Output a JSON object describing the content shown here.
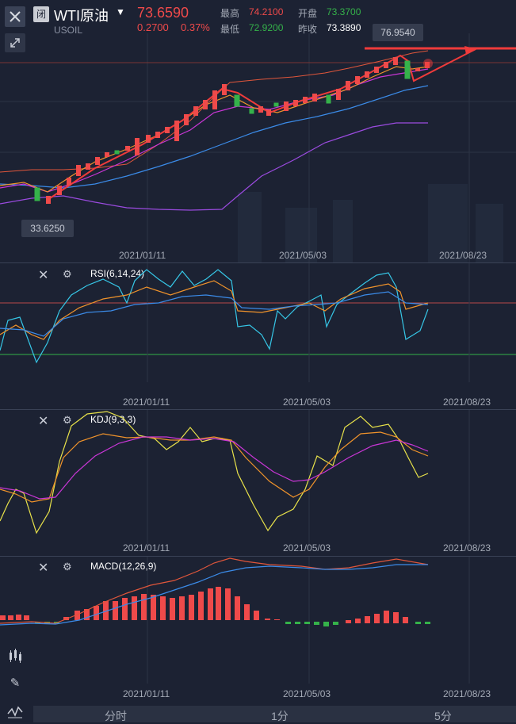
{
  "header": {
    "closed_tag": "闭",
    "symbol_name": "WTI原油",
    "symbol_code": "USOIL",
    "last_price": "73.6590",
    "change": "0.2700",
    "change_pct": "0.37%",
    "high_label": "最高",
    "high_value": "74.2100",
    "open_label": "开盘",
    "open_value": "73.3700",
    "low_label": "最低",
    "low_value": "72.9200",
    "prev_close_label": "昨收",
    "prev_close_value": "73.3890"
  },
  "main_chart": {
    "max_label": "76.9540",
    "min_label": "33.6250",
    "dates": [
      "2021/01/11",
      "2021/05/03",
      "2021/08/23"
    ]
  },
  "panels": {
    "rsi_label": "RSI(6,14,24)",
    "kdj_label": "KDJ(9,3,3)",
    "macd_label": "MACD(12,26,9)"
  },
  "tabs": [
    "分时",
    "1分",
    "5分"
  ],
  "colors": {
    "up": "#ef4a4a",
    "down": "#35b24a",
    "background": "#1c2233",
    "ma_orange": "#f0932b",
    "ma_magenta": "#c936d6",
    "ma_blue": "#3b8be8",
    "rsi_cyan": "#36c6e6",
    "kdj_yellow": "#e8e24a"
  },
  "icons": {
    "close": "close-icon",
    "collapse": "collapse-arrows-icon",
    "settings": "gear-icon",
    "indicator_toggle": "candles-icon",
    "draw": "pencil-icon",
    "indicator": "wave-icon"
  }
}
